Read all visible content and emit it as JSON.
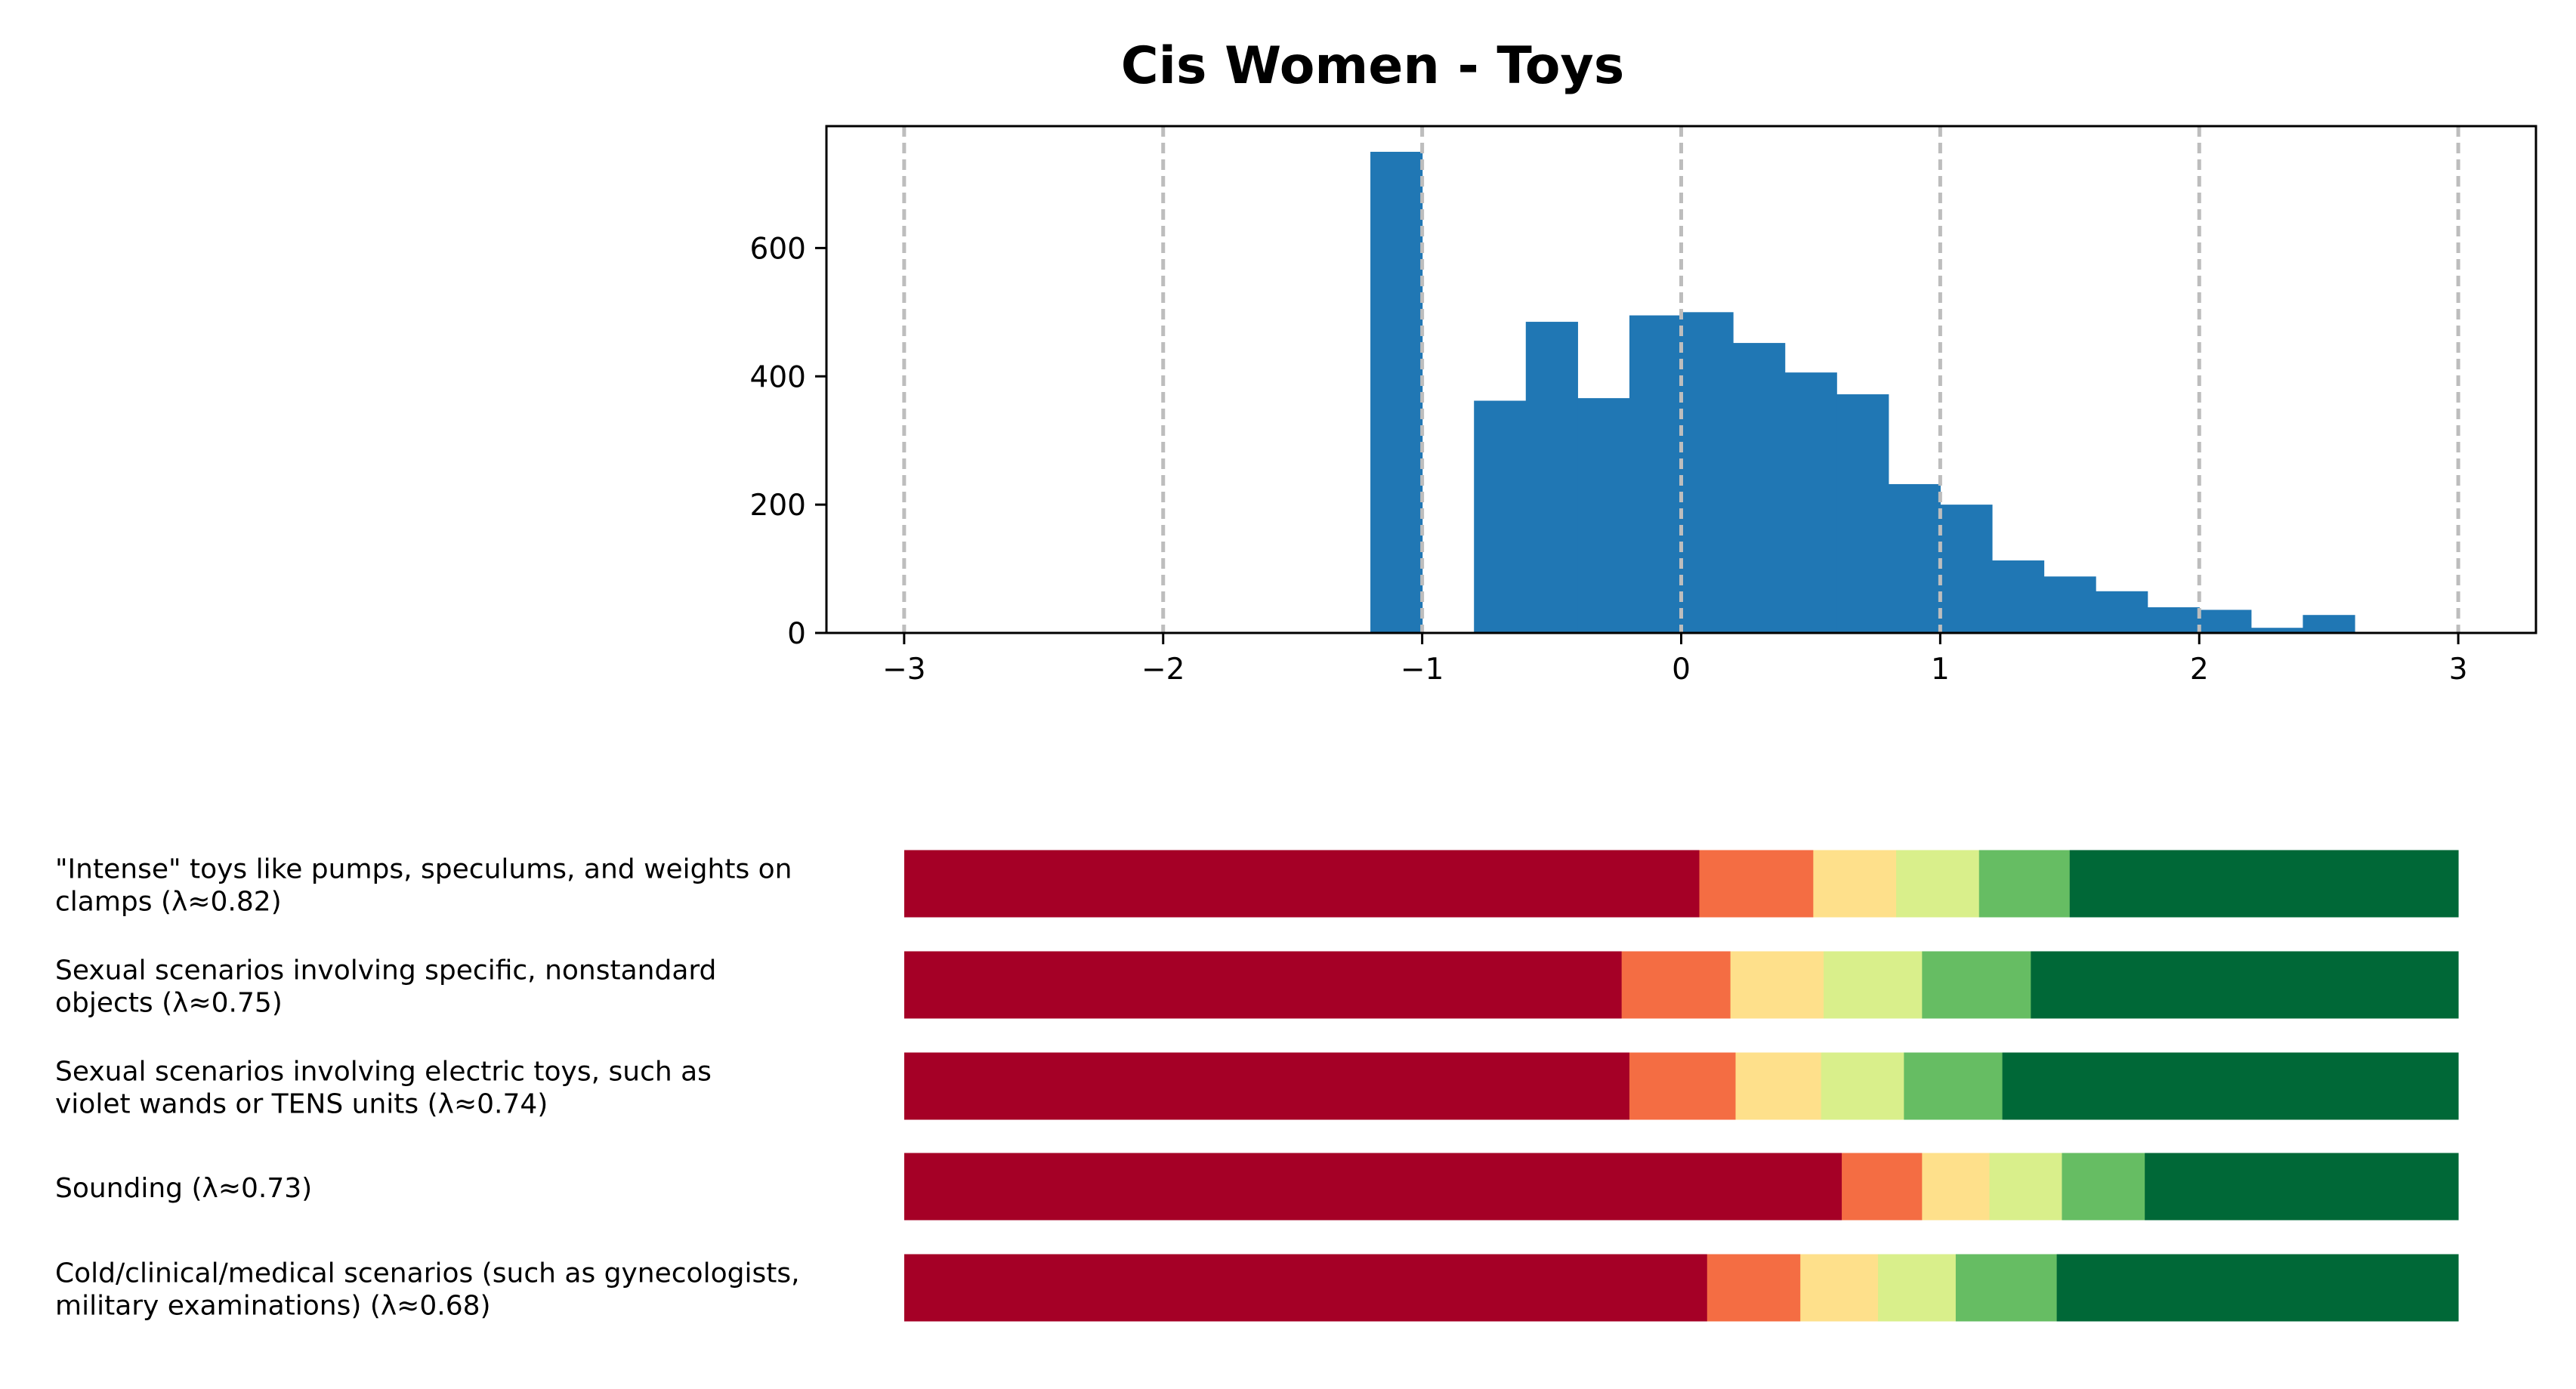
{
  "title": "Cis Women - Toys",
  "chart_data": [
    {
      "type": "bar",
      "title": "Cis Women - Toys",
      "xlabel": "",
      "ylabel": "",
      "bin_width": 0.2,
      "bins": [
        {
          "x0": -1.2,
          "count": 750
        },
        {
          "x0": -1.0,
          "count": 0
        },
        {
          "x0": -0.8,
          "count": 362
        },
        {
          "x0": -0.6,
          "count": 485
        },
        {
          "x0": -0.4,
          "count": 366
        },
        {
          "x0": -0.2,
          "count": 495
        },
        {
          "x0": 0.0,
          "count": 500
        },
        {
          "x0": 0.2,
          "count": 452
        },
        {
          "x0": 0.4,
          "count": 406
        },
        {
          "x0": 0.6,
          "count": 372
        },
        {
          "x0": 0.8,
          "count": 232
        },
        {
          "x0": 1.0,
          "count": 200
        },
        {
          "x0": 1.2,
          "count": 113
        },
        {
          "x0": 1.4,
          "count": 88
        },
        {
          "x0": 1.6,
          "count": 65
        },
        {
          "x0": 1.8,
          "count": 40
        },
        {
          "x0": 2.0,
          "count": 36
        },
        {
          "x0": 2.2,
          "count": 8
        },
        {
          "x0": 2.4,
          "count": 28
        }
      ],
      "xlim": [
        -3.3,
        3.3
      ],
      "ylim": [
        0,
        790
      ],
      "xticks": [
        -3,
        -2,
        -1,
        0,
        1,
        2,
        3
      ],
      "xtick_labels": [
        "−3",
        "−2",
        "−1",
        "0",
        "1",
        "2",
        "3"
      ],
      "yticks": [
        0,
        200,
        400,
        600
      ],
      "ytick_labels": [
        "0",
        "200",
        "400",
        "600"
      ],
      "grid": "vertical dashed at x ticks",
      "bar_color": "#2077b4",
      "grid_color": "#bdbdbd"
    },
    {
      "type": "bar",
      "orientation": "horizontal-stacked",
      "xlim": [
        -3,
        3
      ],
      "segment_colors": [
        "#a50026",
        "#f46d43",
        "#fee08b",
        "#d9ef8b",
        "#66bd63",
        "#006837"
      ],
      "categories": [
        "\"Intense\" toys like pumps, speculums, and weights on\nclamps (λ≈0.82)",
        "Sexual scenarios involving specific, nonstandard\nobjects (λ≈0.75)",
        "Sexual scenarios involving electric toys, such as\nviolet wands or TENS units (λ≈0.74)",
        "Sounding (λ≈0.73)",
        "Cold/clinical/medical scenarios (such as gynecologists,\nmilitary examinations) (λ≈0.68)"
      ],
      "labels": [
        [
          "\"Intense\" toys like pumps, speculums, and weights on",
          "clamps (λ≈0.82)"
        ],
        [
          "Sexual scenarios involving specific, nonstandard",
          "objects (λ≈0.75)"
        ],
        [
          "Sexual scenarios involving electric toys, such as",
          "violet wands or TENS units (λ≈0.74)"
        ],
        [
          "Sounding (λ≈0.73)"
        ],
        [
          "Cold/clinical/medical scenarios (such as gynecologists,",
          "military examinations) (λ≈0.68)"
        ]
      ],
      "boundaries": [
        [
          -3,
          0.07,
          0.51,
          0.83,
          1.15,
          1.5,
          3
        ],
        [
          -3,
          -0.23,
          0.19,
          0.55,
          0.93,
          1.35,
          3
        ],
        [
          -3,
          -0.2,
          0.21,
          0.54,
          0.86,
          1.24,
          3
        ],
        [
          -3,
          0.62,
          0.93,
          1.19,
          1.47,
          1.79,
          3
        ],
        [
          -3,
          0.1,
          0.46,
          0.76,
          1.06,
          1.45,
          3
        ]
      ]
    }
  ]
}
